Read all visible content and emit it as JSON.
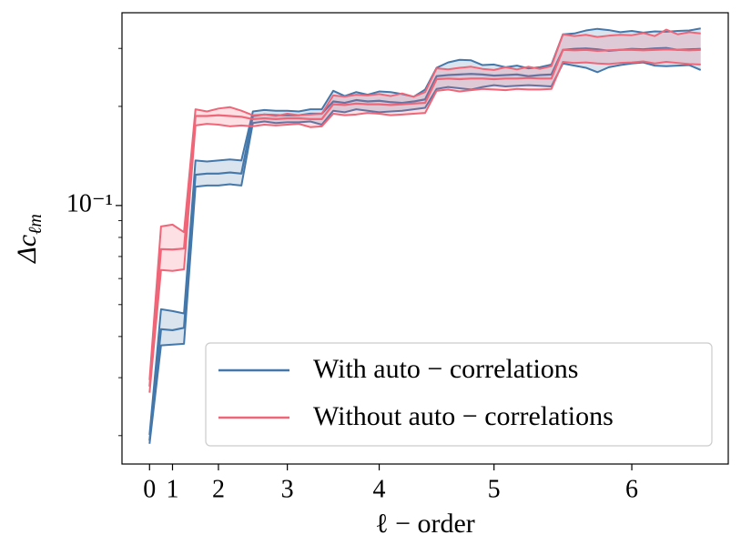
{
  "chart_data": {
    "type": "line",
    "xlabel": "ℓ − order",
    "ylabel": "Δc",
    "ylabel_sub": "ℓm",
    "log_y": true,
    "legend": "lower right",
    "x": [
      0,
      1,
      2,
      3,
      4,
      5,
      6,
      7,
      8,
      9,
      10,
      11,
      12,
      13,
      14,
      15,
      16,
      17,
      18,
      19,
      20,
      21,
      22,
      23,
      24,
      25,
      26,
      27,
      28,
      29,
      30,
      31,
      32,
      33,
      34,
      35,
      36,
      37,
      38,
      39,
      40,
      41,
      42,
      43,
      44,
      45,
      46,
      47,
      48
    ],
    "xlim": [
      -2.4,
      50.4
    ],
    "xticks": [
      {
        "value": 0,
        "label": "0"
      },
      {
        "value": 2,
        "label": "1"
      },
      {
        "value": 6,
        "label": "2"
      },
      {
        "value": 12,
        "label": "3"
      },
      {
        "value": 20,
        "label": "4"
      },
      {
        "value": 30,
        "label": "5"
      },
      {
        "value": 42,
        "label": "6"
      }
    ],
    "ylim": [
      0.0164,
      0.385
    ],
    "yticks": [
      {
        "value": 0.1,
        "label": "10⁻¹"
      }
    ],
    "yticks_minor": [
      0.02,
      0.03,
      0.04,
      0.05,
      0.06,
      0.07,
      0.08,
      0.09,
      0.2,
      0.3
    ],
    "series": [
      {
        "name": "With auto − correlations",
        "color": "#4477aa",
        "values": [
          0.0193,
          0.0421,
          0.0418,
          0.0425,
          0.124,
          0.125,
          0.125,
          0.126,
          0.125,
          0.187,
          0.189,
          0.188,
          0.188,
          0.188,
          0.19,
          0.19,
          0.207,
          0.205,
          0.209,
          0.207,
          0.208,
          0.206,
          0.205,
          0.207,
          0.21,
          0.247,
          0.249,
          0.25,
          0.251,
          0.25,
          0.248,
          0.249,
          0.25,
          0.247,
          0.249,
          0.25,
          0.297,
          0.299,
          0.3,
          0.298,
          0.295,
          0.297,
          0.299,
          0.298,
          0.3,
          0.301,
          0.297,
          0.298,
          0.299
        ],
        "upper": [
          0.0201,
          0.0484,
          0.0478,
          0.047,
          0.137,
          0.136,
          0.137,
          0.138,
          0.137,
          0.193,
          0.195,
          0.194,
          0.194,
          0.193,
          0.196,
          0.196,
          0.223,
          0.215,
          0.221,
          0.217,
          0.222,
          0.221,
          0.218,
          0.214,
          0.225,
          0.262,
          0.272,
          0.277,
          0.276,
          0.267,
          0.268,
          0.263,
          0.266,
          0.261,
          0.263,
          0.268,
          0.331,
          0.333,
          0.34,
          0.344,
          0.341,
          0.336,
          0.339,
          0.335,
          0.338,
          0.337,
          0.339,
          0.34,
          0.345
        ],
        "lower": [
          0.0189,
          0.0376,
          0.0378,
          0.038,
          0.114,
          0.115,
          0.115,
          0.116,
          0.115,
          0.178,
          0.18,
          0.178,
          0.179,
          0.179,
          0.18,
          0.176,
          0.194,
          0.192,
          0.196,
          0.194,
          0.192,
          0.193,
          0.194,
          0.196,
          0.198,
          0.226,
          0.229,
          0.227,
          0.225,
          0.229,
          0.232,
          0.23,
          0.231,
          0.232,
          0.231,
          0.23,
          0.27,
          0.266,
          0.262,
          0.254,
          0.263,
          0.267,
          0.27,
          0.272,
          0.266,
          0.265,
          0.266,
          0.267,
          0.258
        ]
      },
      {
        "name": "Without auto − correlations",
        "color": "#ee6677",
        "values": [
          0.0282,
          0.0737,
          0.0735,
          0.074,
          0.187,
          0.187,
          0.188,
          0.187,
          0.186,
          0.183,
          0.184,
          0.183,
          0.184,
          0.184,
          0.183,
          0.183,
          0.203,
          0.202,
          0.204,
          0.203,
          0.203,
          0.202,
          0.203,
          0.204,
          0.205,
          0.242,
          0.243,
          0.242,
          0.243,
          0.243,
          0.242,
          0.243,
          0.243,
          0.244,
          0.243,
          0.243,
          0.297,
          0.296,
          0.297,
          0.295,
          0.296,
          0.297,
          0.297,
          0.296,
          0.297,
          0.298,
          0.297,
          0.296,
          0.297
        ],
        "upper": [
          0.0295,
          0.0864,
          0.0875,
          0.083,
          0.196,
          0.193,
          0.197,
          0.199,
          0.194,
          0.188,
          0.189,
          0.187,
          0.19,
          0.188,
          0.189,
          0.19,
          0.216,
          0.214,
          0.217,
          0.216,
          0.218,
          0.215,
          0.219,
          0.214,
          0.221,
          0.261,
          0.259,
          0.262,
          0.264,
          0.26,
          0.258,
          0.263,
          0.259,
          0.264,
          0.26,
          0.265,
          0.331,
          0.327,
          0.33,
          0.325,
          0.328,
          0.33,
          0.329,
          0.334,
          0.327,
          0.342,
          0.331,
          0.336,
          0.333
        ],
        "lower": [
          0.027,
          0.0637,
          0.0633,
          0.064,
          0.175,
          0.177,
          0.176,
          0.174,
          0.175,
          0.174,
          0.176,
          0.175,
          0.176,
          0.177,
          0.173,
          0.174,
          0.19,
          0.188,
          0.189,
          0.191,
          0.19,
          0.188,
          0.189,
          0.19,
          0.191,
          0.223,
          0.225,
          0.222,
          0.224,
          0.226,
          0.225,
          0.224,
          0.226,
          0.225,
          0.225,
          0.226,
          0.273,
          0.271,
          0.272,
          0.27,
          0.269,
          0.271,
          0.272,
          0.274,
          0.27,
          0.273,
          0.271,
          0.269,
          0.268
        ]
      }
    ]
  }
}
